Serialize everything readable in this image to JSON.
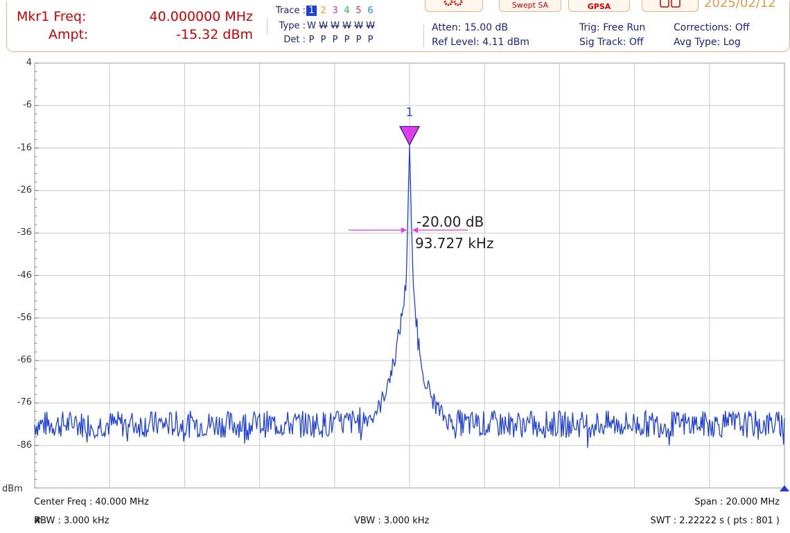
{
  "header": {
    "marker_freq_label": "Mkr1 Freq:",
    "marker_freq_value": "40.000000 MHz",
    "marker_ampt_label": "Ampt:",
    "marker_ampt_value": "-15.32 dBm",
    "trace_label": "Trace :",
    "type_label": "Type :",
    "det_label": "Det :",
    "traces": [
      {
        "num": "1",
        "type": "W",
        "det": "P",
        "color": "#1e40d8"
      },
      {
        "num": "2",
        "type": "W",
        "det": "P",
        "color": "#e8a21a"
      },
      {
        "num": "3",
        "type": "W",
        "det": "P",
        "color": "#d633d6"
      },
      {
        "num": "4",
        "type": "W",
        "det": "P",
        "color": "#2db84d"
      },
      {
        "num": "5",
        "type": "W",
        "det": "P",
        "color": "#d23b3b"
      },
      {
        "num": "6",
        "type": "W",
        "det": "P",
        "color": "#1e88d8"
      }
    ],
    "atten": "Atten: 15.00 dB",
    "ref_level": "Ref Level: 4.11 dBm",
    "trig": "Trig: Free Run",
    "sig_track": "Sig Track: Off",
    "corrections": "Corrections: Off",
    "avg_type": "Avg Type: Log",
    "mode_button": "Swept SA",
    "app_button": "GPSA",
    "date": "2025/02/12"
  },
  "footer": {
    "center_freq": "Center Freq : 40.000 MHz",
    "span": "Span : 20.000 MHz",
    "rbw_hash": "#",
    "rbw": "RBW : 3.000 kHz",
    "vbw": "VBW : 3.000 kHz",
    "swt": "SWT : 2.22222 s ( pts : 801 )"
  },
  "colors": {
    "trace": "#1e40d8",
    "marker": "#e23be8",
    "grid": "#c8c8c8",
    "header_border": "#e9b48a",
    "accent_red": "#cc0000"
  },
  "chart_data": {
    "type": "line",
    "y_unit": "dBm",
    "y_ticks": [
      "4",
      "-6",
      "-16",
      "-26",
      "-36",
      "-46",
      "-56",
      "-66",
      "-76",
      "-86"
    ],
    "ylim": [
      -96,
      4
    ],
    "xlim_mhz": [
      30,
      50
    ],
    "x_divisions": 10,
    "y_divisions": 10,
    "grid": true,
    "noise_floor_dbm": -81,
    "marker": {
      "label": "1",
      "freq_mhz": 40.0,
      "ampt_dbm": -15.32
    },
    "bandwidth_measure": {
      "x_db": "-20.00 dB",
      "bw": "93.727 kHz",
      "level_dbm": -35.32
    },
    "series": [
      {
        "x_mhz": [
          30.0,
          33.0,
          35.0,
          36.0,
          37.0,
          38.0,
          38.5,
          38.9,
          39.2,
          39.4,
          39.6,
          39.75,
          39.85,
          39.9,
          39.95,
          39.98,
          40.0,
          40.02,
          40.05,
          40.1,
          40.15,
          40.25,
          40.4,
          40.6,
          40.8,
          41.0,
          41.5,
          42.0,
          43.0,
          46.0,
          50.0
        ],
        "y_dbm": [
          -81.0,
          -81.0,
          -81.0,
          -81.0,
          -81.0,
          -81.0,
          -80.5,
          -79.5,
          -77.0,
          -72.0,
          -66.0,
          -58.0,
          -52.0,
          -48.0,
          -35.0,
          -22.0,
          -15.32,
          -22.0,
          -35.0,
          -50.0,
          -54.0,
          -62.0,
          -70.0,
          -75.0,
          -78.0,
          -80.0,
          -81.0,
          -81.0,
          -81.0,
          -81.0,
          -81.0
        ]
      }
    ]
  }
}
